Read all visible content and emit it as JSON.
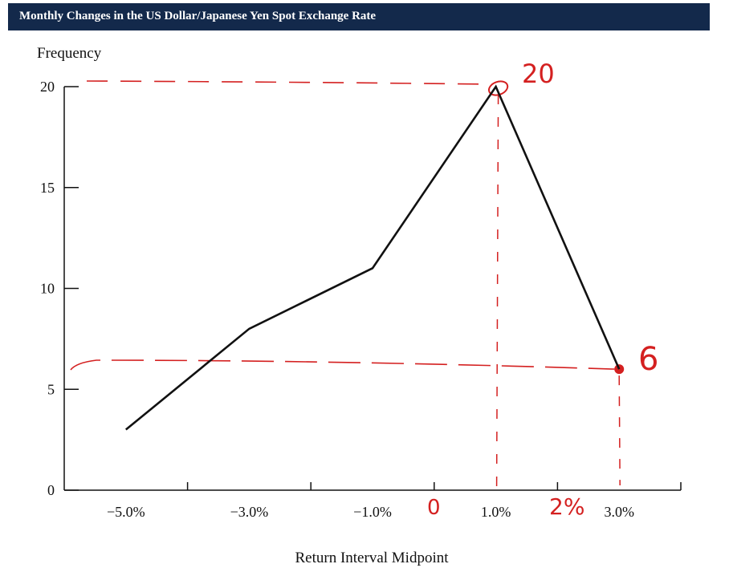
{
  "chart_data": {
    "type": "line",
    "title": "Monthly Changes in the US Dollar/Japanese Yen Spot Exchange Rate",
    "xlabel": "Return Interval Midpoint",
    "ylabel": "Frequency",
    "x_tick_labels": [
      "−5.0%",
      "−3.0%",
      "−1.0%",
      "1.0%",
      "3.0%"
    ],
    "y_tick_labels": [
      "0",
      "5",
      "10",
      "15",
      "20"
    ],
    "ylim": [
      0,
      20
    ],
    "xlim": [
      -6,
      4
    ],
    "grid": false,
    "series": [
      {
        "x": [
          -5,
          -3,
          -1,
          1,
          3
        ],
        "values": [
          3,
          8,
          11,
          20,
          6
        ]
      }
    ]
  },
  "annotations": {
    "label_20": "20",
    "label_6": "6",
    "label_0": "0",
    "label_2pct": "2%",
    "ink_color": "#d42020",
    "header_color": "#13294b"
  }
}
